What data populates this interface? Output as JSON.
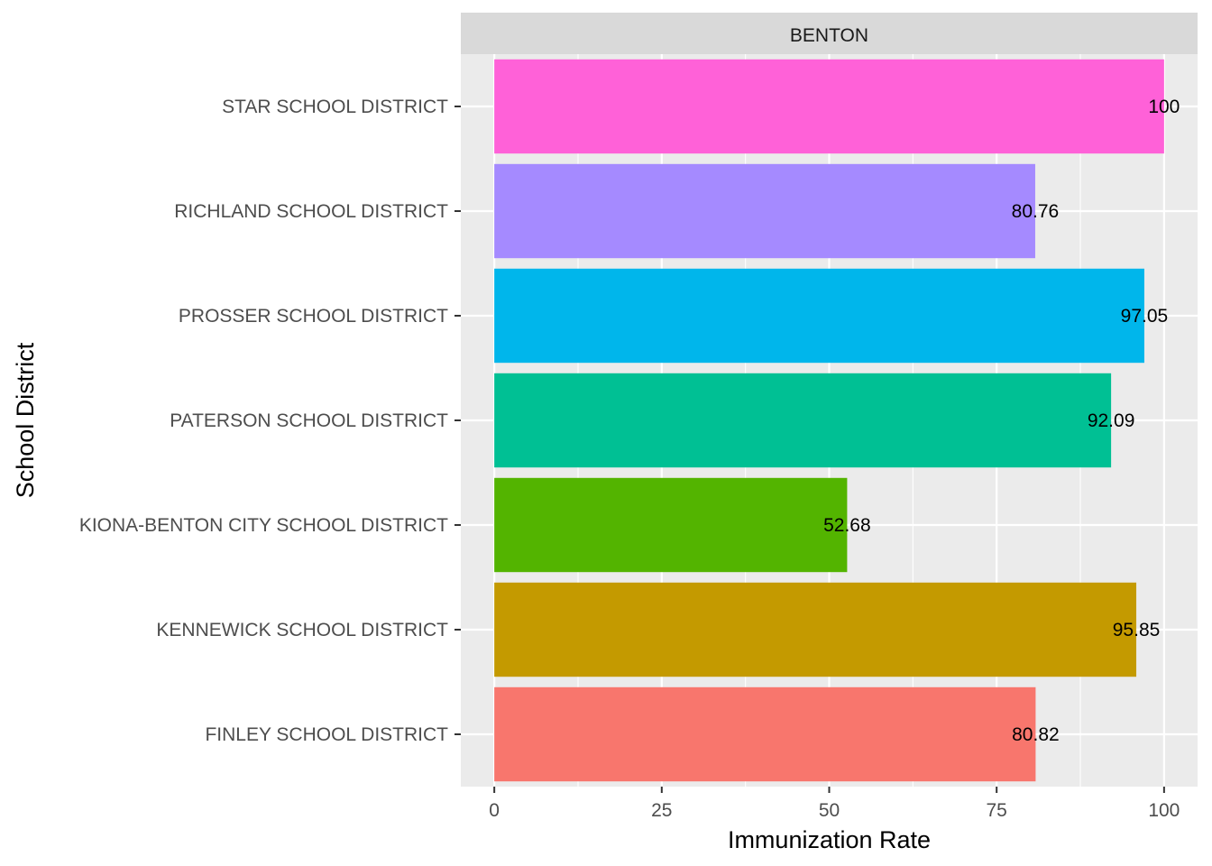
{
  "chart_data": {
    "type": "bar",
    "orientation": "horizontal",
    "facet_label": "BENTON",
    "xlabel": "Immunization Rate",
    "ylabel": "School District",
    "xlim": [
      -5,
      105
    ],
    "x_ticks": [
      0,
      25,
      50,
      75,
      100
    ],
    "x_tick_labels": [
      "0",
      "25",
      "50",
      "75",
      "100"
    ],
    "grid": true,
    "legend": "none",
    "bars": [
      {
        "category": "STAR SCHOOL DISTRICT",
        "value": 100,
        "label": "100",
        "color": "#FF61D8"
      },
      {
        "category": "RICHLAND SCHOOL DISTRICT",
        "value": 80.76,
        "label": "80.76",
        "color": "#A58AFF"
      },
      {
        "category": "PROSSER SCHOOL DISTRICT",
        "value": 97.05,
        "label": "97.05",
        "color": "#00B6EB"
      },
      {
        "category": "PATERSON SCHOOL DISTRICT",
        "value": 92.09,
        "label": "92.09",
        "color": "#00C094"
      },
      {
        "category": "KIONA-BENTON CITY SCHOOL DISTRICT",
        "value": 52.68,
        "label": "52.68",
        "color": "#53B400"
      },
      {
        "category": "KENNEWICK SCHOOL DISTRICT",
        "value": 95.85,
        "label": "95.85",
        "color": "#C49A00"
      },
      {
        "category": "FINLEY SCHOOL DISTRICT",
        "value": 80.82,
        "label": "80.82",
        "color": "#F8766D"
      }
    ]
  }
}
